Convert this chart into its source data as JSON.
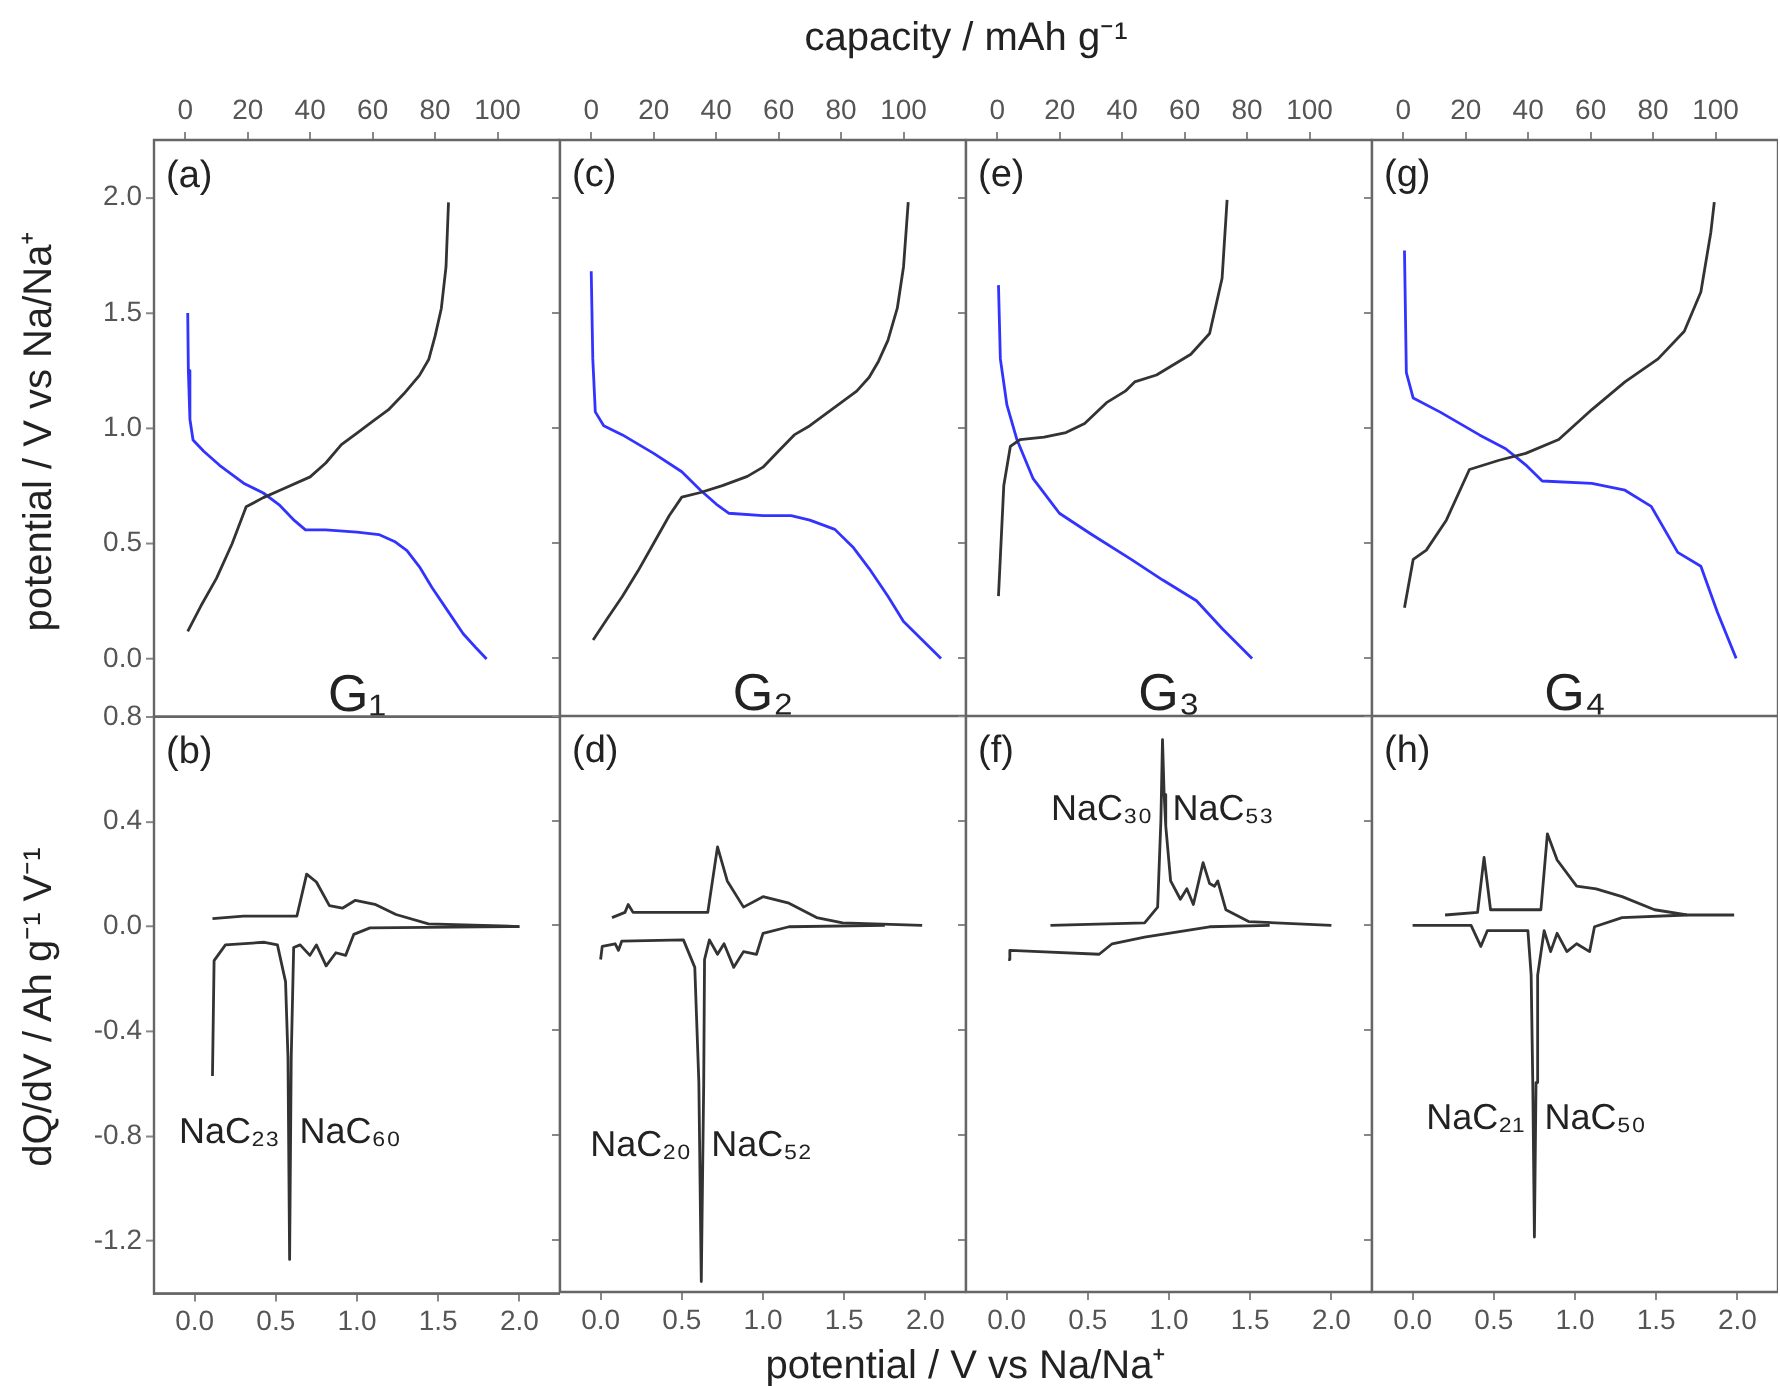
{
  "chart_data": [
    {
      "type": "line",
      "ylabel": "potential / V vs Na/Na⁺",
      "annotations": [
        "(a)",
        "G₁"
      ],
      "xlim": [
        -10,
        120
      ],
      "xticks": [
        0,
        20,
        40,
        60,
        80,
        100
      ],
      "ylim": [
        -0.25,
        2.25
      ],
      "yticks": [
        {
          "value": 0,
          "label": "0.0"
        },
        {
          "value": 0.5,
          "label": "0.5"
        },
        {
          "value": 1,
          "label": "1.0"
        },
        {
          "value": 1.5,
          "label": "1.5"
        },
        {
          "value": 2,
          "label": "2.0"
        }
      ],
      "series": [
        {
          "color": "#333333",
          "x": [
            0.8,
            5,
            10,
            15,
            19.5,
            25,
            30,
            40,
            45,
            50,
            55,
            60,
            65,
            70,
            75,
            78,
            80,
            82,
            83.5,
            84.3
          ],
          "values": [
            0.12,
            0.23,
            0.35,
            0.5,
            0.66,
            0.7,
            0.73,
            0.79,
            0.85,
            0.93,
            0.98,
            1.03,
            1.08,
            1.15,
            1.23,
            1.3,
            1.4,
            1.52,
            1.7,
            1.98
          ]
        },
        {
          "color": "#3333ff",
          "x": [
            0.8,
            1,
            1.5,
            2.5,
            6,
            11,
            19,
            25,
            30,
            35,
            38.5,
            45,
            55,
            62,
            67,
            71,
            75,
            79,
            84,
            89,
            93,
            96.5
          ],
          "values": [
            1.5,
            1.25,
            1.04,
            0.95,
            0.9,
            0.84,
            0.76,
            0.72,
            0.67,
            0.6,
            0.56,
            0.56,
            0.55,
            0.54,
            0.51,
            0.47,
            0.4,
            0.31,
            0.21,
            0.11,
            0.05,
            0.0
          ]
        }
      ]
    },
    {
      "type": "line",
      "xlabel": "capacity / mAh g⁻¹",
      "tick_labels": "x",
      "annotations": [
        "(c)",
        "G₂"
      ],
      "xlim": [
        -10,
        120
      ],
      "xticks": [
        0,
        20,
        40,
        60,
        80,
        100
      ],
      "ylim": [
        -0.25,
        2.25
      ],
      "yticks": [
        0,
        0.5,
        1,
        1.5,
        2
      ],
      "series": [
        {
          "color": "#333333",
          "x": [
            0.6,
            5,
            10,
            15,
            20,
            25,
            29,
            35,
            42,
            50,
            55,
            60,
            65,
            70,
            75,
            80,
            85,
            89,
            92,
            95,
            98,
            100,
            101.5
          ],
          "values": [
            0.08,
            0.17,
            0.27,
            0.38,
            0.5,
            0.62,
            0.7,
            0.72,
            0.75,
            0.79,
            0.83,
            0.9,
            0.97,
            1.01,
            1.06,
            1.11,
            1.16,
            1.22,
            1.29,
            1.38,
            1.52,
            1.7,
            1.98
          ]
        },
        {
          "color": "#3333ff",
          "x": [
            0,
            0.5,
            1.3,
            4,
            10,
            20,
            29,
            35,
            40,
            44,
            55,
            64,
            70,
            78,
            84,
            89,
            95,
            100,
            106,
            112
          ],
          "values": [
            1.68,
            1.3,
            1.07,
            1.01,
            0.97,
            0.89,
            0.81,
            0.73,
            0.67,
            0.63,
            0.62,
            0.62,
            0.6,
            0.56,
            0.48,
            0.39,
            0.27,
            0.16,
            0.08,
            0.0
          ]
        }
      ]
    },
    {
      "type": "line",
      "tick_labels": "x",
      "annotations": [
        "(e)",
        "G₃"
      ],
      "xlim": [
        -10,
        120
      ],
      "xticks": [
        0,
        20,
        40,
        60,
        80,
        100
      ],
      "ylim": [
        -0.25,
        2.25
      ],
      "yticks": [
        0,
        0.5,
        1,
        1.5,
        2
      ],
      "series": [
        {
          "color": "#333333",
          "x": [
            0.4,
            2.1,
            4.2,
            7.3,
            15,
            22,
            28,
            35,
            41,
            44,
            51,
            62,
            68,
            72,
            73.6
          ],
          "values": [
            0.27,
            0.75,
            0.92,
            0.95,
            0.96,
            0.98,
            1.02,
            1.11,
            1.16,
            1.2,
            1.23,
            1.32,
            1.41,
            1.65,
            1.99
          ]
        },
        {
          "color": "#3333ff",
          "x": [
            0.4,
            1,
            3.1,
            6.3,
            11.5,
            19.9,
            30,
            42.9,
            53,
            63.8,
            72,
            81.6
          ],
          "values": [
            1.62,
            1.3,
            1.1,
            0.95,
            0.78,
            0.63,
            0.54,
            0.43,
            0.34,
            0.25,
            0.13,
            0.0
          ]
        }
      ]
    },
    {
      "type": "line",
      "tick_labels": "x",
      "annotations": [
        "(g)",
        "G₄"
      ],
      "xlim": [
        -10,
        120
      ],
      "xticks": [
        0,
        20,
        40,
        60,
        80,
        100
      ],
      "ylim": [
        -0.25,
        2.25
      ],
      "yticks": [
        0,
        0.5,
        1,
        1.5,
        2
      ],
      "series": [
        {
          "color": "#333333",
          "x": [
            0.4,
            3.2,
            7.4,
            13.8,
            21.2,
            30.7,
            39.2,
            49.8,
            60.4,
            71,
            81.6,
            90,
            95.3,
            98.5,
            99.6
          ],
          "values": [
            0.22,
            0.43,
            0.47,
            0.6,
            0.82,
            0.86,
            0.89,
            0.95,
            1.08,
            1.2,
            1.3,
            1.42,
            1.59,
            1.85,
            1.98
          ]
        },
        {
          "color": "#3333ff",
          "x": [
            0.4,
            1,
            3.2,
            11.7,
            24.4,
            32.8,
            39.2,
            44.5,
            60.4,
            71,
            79.4,
            87.9,
            95.3,
            100.6,
            106.6
          ],
          "values": [
            1.77,
            1.24,
            1.13,
            1.07,
            0.97,
            0.91,
            0.84,
            0.77,
            0.76,
            0.73,
            0.66,
            0.46,
            0.4,
            0.2,
            0.0
          ]
        }
      ]
    },
    {
      "type": "line",
      "ylabel": "dQ/dV / Ah g⁻¹ V⁻¹",
      "annotations": [
        "(b)",
        "NaC₂₃",
        "NaC₆₀"
      ],
      "xlim": [
        -0.25,
        2.25
      ],
      "xticks": [
        {
          "value": 0,
          "label": "0.0"
        },
        {
          "value": 0.5,
          "label": "0.5"
        },
        {
          "value": 1,
          "label": "1.0"
        },
        {
          "value": 1.5,
          "label": "1.5"
        },
        {
          "value": 2,
          "label": "2.0"
        }
      ],
      "ylim": [
        -1.4,
        0.8
      ],
      "yticks": [
        {
          "value": -1.2,
          "label": "-1.2"
        },
        {
          "value": -0.8,
          "label": "-0.8"
        },
        {
          "value": -0.4,
          "label": "-0.4"
        },
        {
          "value": 0,
          "label": "0.0"
        },
        {
          "value": 0.4,
          "label": "0.4"
        },
        {
          "value": 0.8,
          "label": "0.8"
        }
      ],
      "series": [
        {
          "color": "#333333",
          "x": [
            0.11,
            0.3,
            0.63,
            0.69,
            0.75,
            0.83,
            0.91,
            0.99,
            1.11,
            1.24,
            1.44,
            2.0
          ],
          "values": [
            0.03,
            0.04,
            0.04,
            0.2,
            0.17,
            0.08,
            0.07,
            0.1,
            0.085,
            0.046,
            0.01,
            0.0
          ]
        },
        {
          "color": "#333333",
          "x": [
            0.11,
            0.12,
            0.19,
            0.43,
            0.51,
            0.56,
            0.575,
            0.585,
            0.595,
            0.61,
            0.65,
            0.71,
            0.75,
            0.81,
            0.87,
            0.93,
            0.98,
            1.08,
            2.0
          ],
          "values": [
            -0.57,
            -0.13,
            -0.07,
            -0.06,
            -0.07,
            -0.21,
            -0.5,
            -1.27,
            -0.5,
            -0.08,
            -0.07,
            -0.11,
            -0.07,
            -0.15,
            -0.1,
            -0.11,
            -0.03,
            -0.005,
            0.0
          ]
        }
      ]
    },
    {
      "type": "line",
      "xlabel": "potential / V vs Na/Na⁺",
      "tick_labels": "x",
      "annotations": [
        "(d)",
        "NaC₂₀",
        "NaC₅₂"
      ],
      "xlim": [
        -0.25,
        2.25
      ],
      "xticks": [
        {
          "value": 0,
          "label": "0.0"
        },
        {
          "value": 0.5,
          "label": "0.5"
        },
        {
          "value": 1,
          "label": "1.0"
        },
        {
          "value": 1.5,
          "label": "1.5"
        },
        {
          "value": 2,
          "label": "2.0"
        }
      ],
      "ylim": [
        -1.4,
        0.8
      ],
      "yticks": [
        -1.2,
        -0.8,
        -0.4,
        0,
        0.4,
        0.8
      ],
      "series": [
        {
          "color": "#333333",
          "x": [
            0.07,
            0.15,
            0.17,
            0.2,
            0.66,
            0.72,
            0.78,
            0.88,
            1.0,
            1.16,
            1.33,
            1.49,
            1.98
          ],
          "values": [
            0.03,
            0.05,
            0.08,
            0.05,
            0.05,
            0.3,
            0.17,
            0.07,
            0.11,
            0.085,
            0.03,
            0.01,
            0.0
          ]
        },
        {
          "color": "#333333",
          "x": [
            0.0,
            0.01,
            0.09,
            0.11,
            0.13,
            0.51,
            0.58,
            0.605,
            0.62,
            0.635,
            0.64,
            0.67,
            0.72,
            0.76,
            0.82,
            0.88,
            0.96,
            1.0,
            1.16,
            1.75
          ],
          "values": [
            -0.13,
            -0.08,
            -0.07,
            -0.095,
            -0.06,
            -0.055,
            -0.16,
            -0.6,
            -1.36,
            -0.6,
            -0.13,
            -0.055,
            -0.11,
            -0.07,
            -0.16,
            -0.1,
            -0.11,
            -0.03,
            -0.005,
            0.0
          ]
        }
      ]
    },
    {
      "type": "line",
      "tick_labels": "x",
      "annotations": [
        "(f)",
        "NaC₃₀",
        "NaC₅₃"
      ],
      "xlim": [
        -0.25,
        2.25
      ],
      "xticks": [
        {
          "value": 0,
          "label": "0.0"
        },
        {
          "value": 0.5,
          "label": "0.5"
        },
        {
          "value": 1,
          "label": "1.0"
        },
        {
          "value": 1.5,
          "label": "1.5"
        },
        {
          "value": 2,
          "label": "2.0"
        }
      ],
      "ylim": [
        -1.4,
        0.8
      ],
      "yticks": [
        -1.2,
        -0.8,
        -0.4,
        0,
        0.4,
        0.8
      ],
      "series": [
        {
          "color": "#333333",
          "x": [
            0.27,
            0.85,
            0.93,
            0.95,
            0.96,
            0.97,
            0.98,
            1.01,
            1.07,
            1.11,
            1.15,
            1.21,
            1.25,
            1.28,
            1.3,
            1.35,
            1.49,
            2.0
          ],
          "values": [
            0.0,
            0.01,
            0.07,
            0.4,
            0.71,
            0.5,
            0.38,
            0.17,
            0.1,
            0.14,
            0.08,
            0.24,
            0.16,
            0.15,
            0.17,
            0.06,
            0.015,
            0.0
          ]
        },
        {
          "color": "#333333",
          "x": [
            0.01,
            0.02,
            0.2,
            0.57,
            0.65,
            0.85,
            1.25,
            1.62
          ],
          "values": [
            -0.13,
            -0.095,
            -0.1,
            -0.11,
            -0.07,
            -0.045,
            -0.005,
            0.0
          ]
        }
      ]
    },
    {
      "type": "line",
      "tick_labels": "x",
      "annotations": [
        "(h)",
        "NaC₂₁",
        "NaC₅₀"
      ],
      "xlim": [
        -0.25,
        2.25
      ],
      "xticks": [
        {
          "value": 0,
          "label": "0.0"
        },
        {
          "value": 0.5,
          "label": "0.5"
        },
        {
          "value": 1,
          "label": "1.0"
        },
        {
          "value": 1.5,
          "label": "1.5"
        },
        {
          "value": 2,
          "label": "2.0"
        }
      ],
      "ylim": [
        -1.4,
        0.8
      ],
      "yticks": [
        -1.2,
        -0.8,
        -0.4,
        0,
        0.4,
        0.8
      ],
      "series": [
        {
          "color": "#333333",
          "x": [
            0.2,
            0.4,
            0.44,
            0.48,
            0.79,
            0.83,
            0.89,
            1.01,
            1.13,
            1.29,
            1.49,
            1.69,
            1.98
          ],
          "values": [
            0.04,
            0.05,
            0.26,
            0.06,
            0.06,
            0.35,
            0.25,
            0.15,
            0.14,
            0.11,
            0.06,
            0.04,
            0.04
          ]
        },
        {
          "color": "#333333",
          "x": [
            0.0,
            0.36,
            0.42,
            0.46,
            0.71,
            0.73,
            0.74,
            0.75,
            0.76,
            0.77,
            0.81,
            0.85,
            0.89,
            0.95,
            1.01,
            1.09,
            1.12,
            1.29,
            1.69
          ],
          "values": [
            0.0,
            0.0,
            -0.08,
            -0.02,
            -0.02,
            -0.19,
            -0.6,
            -1.19,
            -0.6,
            -0.19,
            -0.02,
            -0.1,
            -0.03,
            -0.1,
            -0.07,
            -0.1,
            -0.005,
            0.03,
            0.04
          ]
        }
      ]
    }
  ]
}
